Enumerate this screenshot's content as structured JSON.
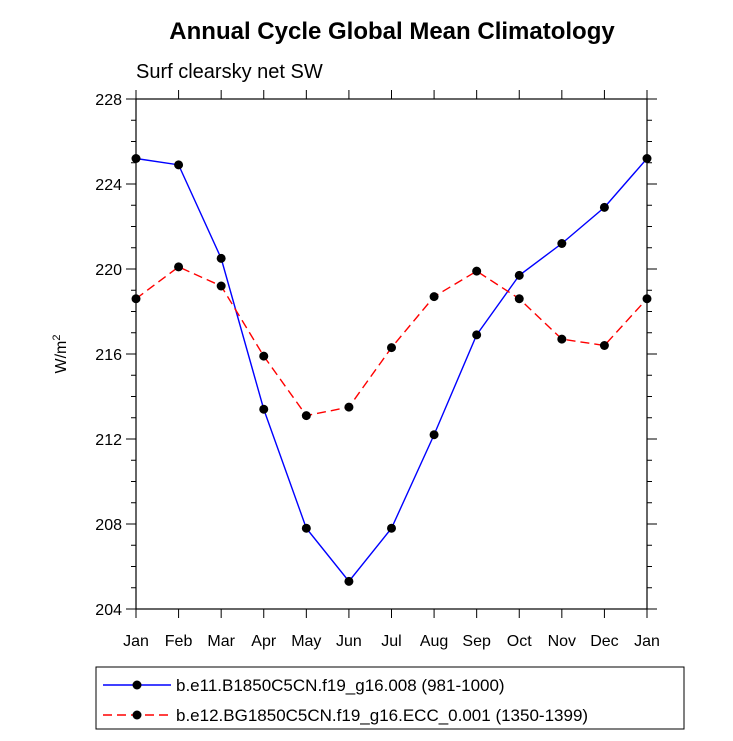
{
  "chart_data": {
    "type": "line",
    "title": "Annual Cycle Global Mean Climatology",
    "subtitle": "Surf clearsky net SW",
    "ylabel": "W/m",
    "ylabel_superscript": "2",
    "xlabel": "",
    "categories": [
      "Jan",
      "Feb",
      "Mar",
      "Apr",
      "May",
      "Jun",
      "Jul",
      "Aug",
      "Sep",
      "Oct",
      "Nov",
      "Dec",
      "Jan"
    ],
    "ylim": [
      204,
      228
    ],
    "yticks": [
      204,
      208,
      212,
      216,
      220,
      224,
      228
    ],
    "legend_position": "bottom",
    "series": [
      {
        "name": "b.e11.B1850C5CN.f19_g16.008 (981-1000)",
        "color": "#0000ff",
        "style": "solid",
        "values": [
          225.2,
          224.9,
          220.5,
          213.4,
          207.8,
          205.3,
          207.8,
          212.2,
          216.9,
          219.7,
          221.2,
          222.9,
          225.2
        ]
      },
      {
        "name": "b.e12.BG1850C5CN.f19_g16.ECC_0.001 (1350-1399)",
        "color": "#ff0000",
        "style": "dashed",
        "values": [
          218.6,
          220.1,
          219.2,
          215.9,
          213.1,
          213.5,
          216.3,
          218.7,
          219.9,
          218.6,
          216.7,
          216.4,
          218.6
        ]
      }
    ]
  }
}
